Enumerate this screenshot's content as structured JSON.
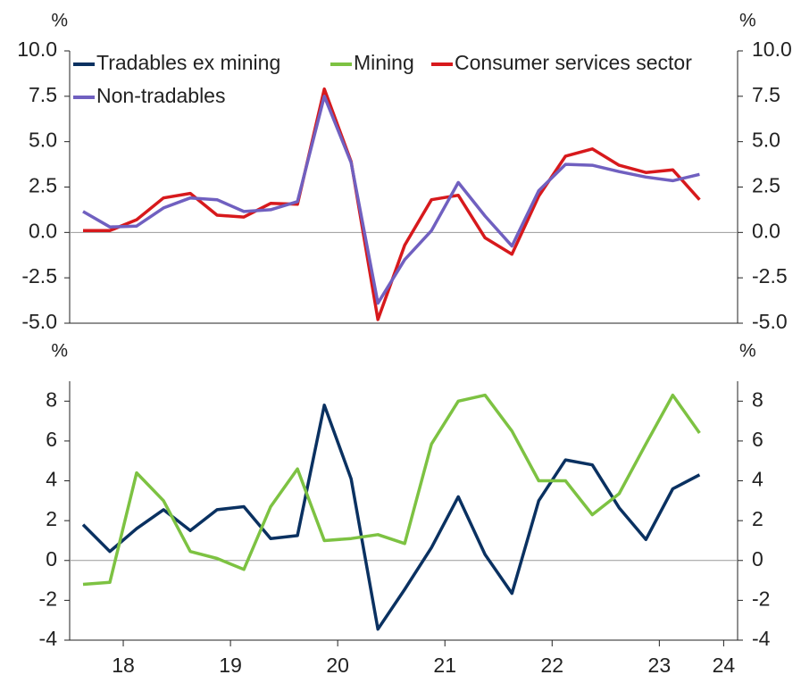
{
  "chart_data": [
    {
      "type": "line",
      "y_label": "%",
      "x": [
        2018.125,
        2018.375,
        2018.625,
        2018.875,
        2019.125,
        2019.375,
        2019.625,
        2019.875,
        2020.125,
        2020.375,
        2020.625,
        2020.875,
        2021.125,
        2021.375,
        2021.625,
        2021.875,
        2022.125,
        2022.375,
        2022.625,
        2022.875,
        2023.125,
        2023.375,
        2023.625,
        2023.875
      ],
      "xlim": [
        2018,
        2024.23
      ],
      "ylim": [
        -5,
        10
      ],
      "yticks": [
        {
          "value": 10,
          "label": "10.0"
        },
        7.5,
        {
          "value": 5,
          "label": "5.0"
        },
        2.5,
        {
          "value": 0,
          "label": "0.0"
        },
        -2.5,
        {
          "value": -5,
          "label": "-5.0"
        }
      ],
      "series": [
        {
          "name": "Consumer services sector",
          "color": "#d7191c",
          "values": [
            0.1,
            0.1,
            0.7,
            1.9,
            2.15,
            0.95,
            0.85,
            1.6,
            1.55,
            7.9,
            3.9,
            -4.8,
            -0.7,
            1.8,
            2.05,
            -0.3,
            -1.2,
            2.0,
            4.2,
            4.6,
            3.7,
            3.3,
            3.45,
            1.8
          ]
        },
        {
          "name": "Non-tradables",
          "color": "#7060c0",
          "values": [
            1.15,
            0.3,
            0.35,
            1.35,
            1.9,
            1.8,
            1.15,
            1.25,
            1.7,
            7.5,
            3.85,
            -3.9,
            -1.5,
            0.1,
            2.75,
            0.9,
            -0.75,
            2.3,
            3.75,
            3.7,
            3.35,
            3.05,
            2.85,
            3.2
          ]
        }
      ]
    },
    {
      "type": "line",
      "y_label": "%",
      "x": [
        2018.125,
        2018.375,
        2018.625,
        2018.875,
        2019.125,
        2019.375,
        2019.625,
        2019.875,
        2020.125,
        2020.375,
        2020.625,
        2020.875,
        2021.125,
        2021.375,
        2021.625,
        2021.875,
        2022.125,
        2022.375,
        2022.625,
        2022.875,
        2023.125,
        2023.375,
        2023.625,
        2023.875
      ],
      "xlim": [
        2018,
        2024.23
      ],
      "xticks": [
        {
          "value": 2018.5,
          "label": "18"
        },
        {
          "value": 2019.5,
          "label": "19"
        },
        {
          "value": 2020.5,
          "label": "20"
        },
        {
          "value": 2021.5,
          "label": "21"
        },
        {
          "value": 2022.5,
          "label": "22"
        },
        {
          "value": 2023.5,
          "label": "23"
        },
        {
          "value": 2024.1,
          "label": "24"
        }
      ],
      "ylim": [
        -4,
        9
      ],
      "yticks": [
        8,
        6,
        4,
        2,
        0,
        -2,
        -4
      ],
      "series": [
        {
          "name": "Tradables ex mining",
          "color": "#0a3161",
          "values": [
            1.8,
            0.45,
            1.6,
            2.55,
            1.5,
            2.55,
            2.7,
            1.1,
            1.25,
            7.8,
            4.1,
            -3.45,
            -1.45,
            0.65,
            3.2,
            0.3,
            -1.65,
            3.0,
            5.05,
            4.8,
            2.65,
            1.05,
            3.6,
            4.3
          ]
        },
        {
          "name": "Mining",
          "color": "#7dc242",
          "values": [
            -1.2,
            -1.1,
            4.4,
            3.0,
            0.45,
            0.1,
            -0.45,
            2.7,
            4.6,
            1.0,
            1.1,
            1.3,
            0.85,
            5.85,
            8.0,
            8.3,
            6.5,
            4.0,
            4.0,
            2.3,
            3.35,
            5.85,
            8.3,
            6.4
          ]
        }
      ]
    }
  ]
}
